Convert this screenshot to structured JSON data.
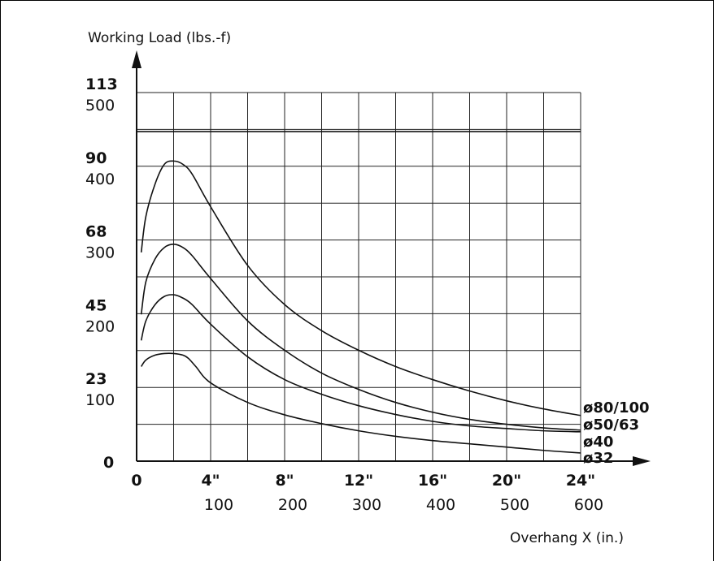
{
  "chart_data": {
    "type": "line",
    "ylabel": "Working Load (lbs.-f)",
    "xlabel": "Overhang X (in.)",
    "y_ticks_bold": [
      "0",
      "23",
      "45",
      "68",
      "90",
      "113"
    ],
    "y_ticks_light": [
      "100",
      "200",
      "300",
      "400",
      "500"
    ],
    "x_ticks_bold": [
      "0",
      "4\"",
      "8\"",
      "12\"",
      "16\"",
      "20\"",
      "24\""
    ],
    "x_ticks_light": [
      "100",
      "200",
      "300",
      "400",
      "500",
      "600"
    ],
    "ylim": [
      0,
      125
    ],
    "xlim": [
      0,
      24
    ],
    "max_load_line": 101,
    "grid": true,
    "series": [
      {
        "name": "ø80/100",
        "x": [
          0,
          0.5,
          1,
          1.5,
          2,
          2.5,
          3,
          4,
          6,
          8,
          10,
          12,
          14,
          16,
          18,
          20,
          22,
          24
        ],
        "y": [
          64,
          75,
          85,
          91,
          92,
          91,
          88,
          78,
          60,
          48,
          40,
          34,
          29,
          25,
          21.5,
          18.5,
          16,
          14
        ]
      },
      {
        "name": "ø50/63",
        "x": [
          0,
          0.5,
          1,
          1.5,
          2,
          2.5,
          3,
          4,
          6,
          8,
          10,
          12,
          14,
          16,
          18,
          20,
          22,
          24
        ],
        "y": [
          45,
          55,
          62,
          65.5,
          66.5,
          65.5,
          63,
          56,
          43,
          34,
          27,
          22,
          18,
          15,
          12.8,
          11.3,
          10.2,
          9.5
        ]
      },
      {
        "name": "ø40",
        "x": [
          0,
          0.5,
          1,
          1.5,
          2,
          2.5,
          3,
          4,
          6,
          8,
          10,
          12,
          14,
          16,
          18,
          20,
          22,
          24
        ],
        "y": [
          37,
          43,
          48,
          50.5,
          51,
          50,
          48,
          42,
          32,
          25,
          20.5,
          17,
          14.3,
          12.2,
          10.8,
          10,
          9.3,
          9
        ]
      },
      {
        "name": "ø32",
        "x": [
          0,
          0.5,
          1,
          1.5,
          2,
          2.5,
          2.8,
          3.2,
          4,
          6,
          8,
          10,
          12,
          14,
          16,
          18,
          20,
          22,
          24
        ],
        "y": [
          29,
          31,
          32.5,
          33,
          33,
          32.5,
          31.5,
          29,
          24,
          18,
          14.2,
          11.5,
          9.3,
          7.6,
          6.3,
          5.3,
          4.3,
          3.3,
          2.5
        ]
      }
    ]
  }
}
